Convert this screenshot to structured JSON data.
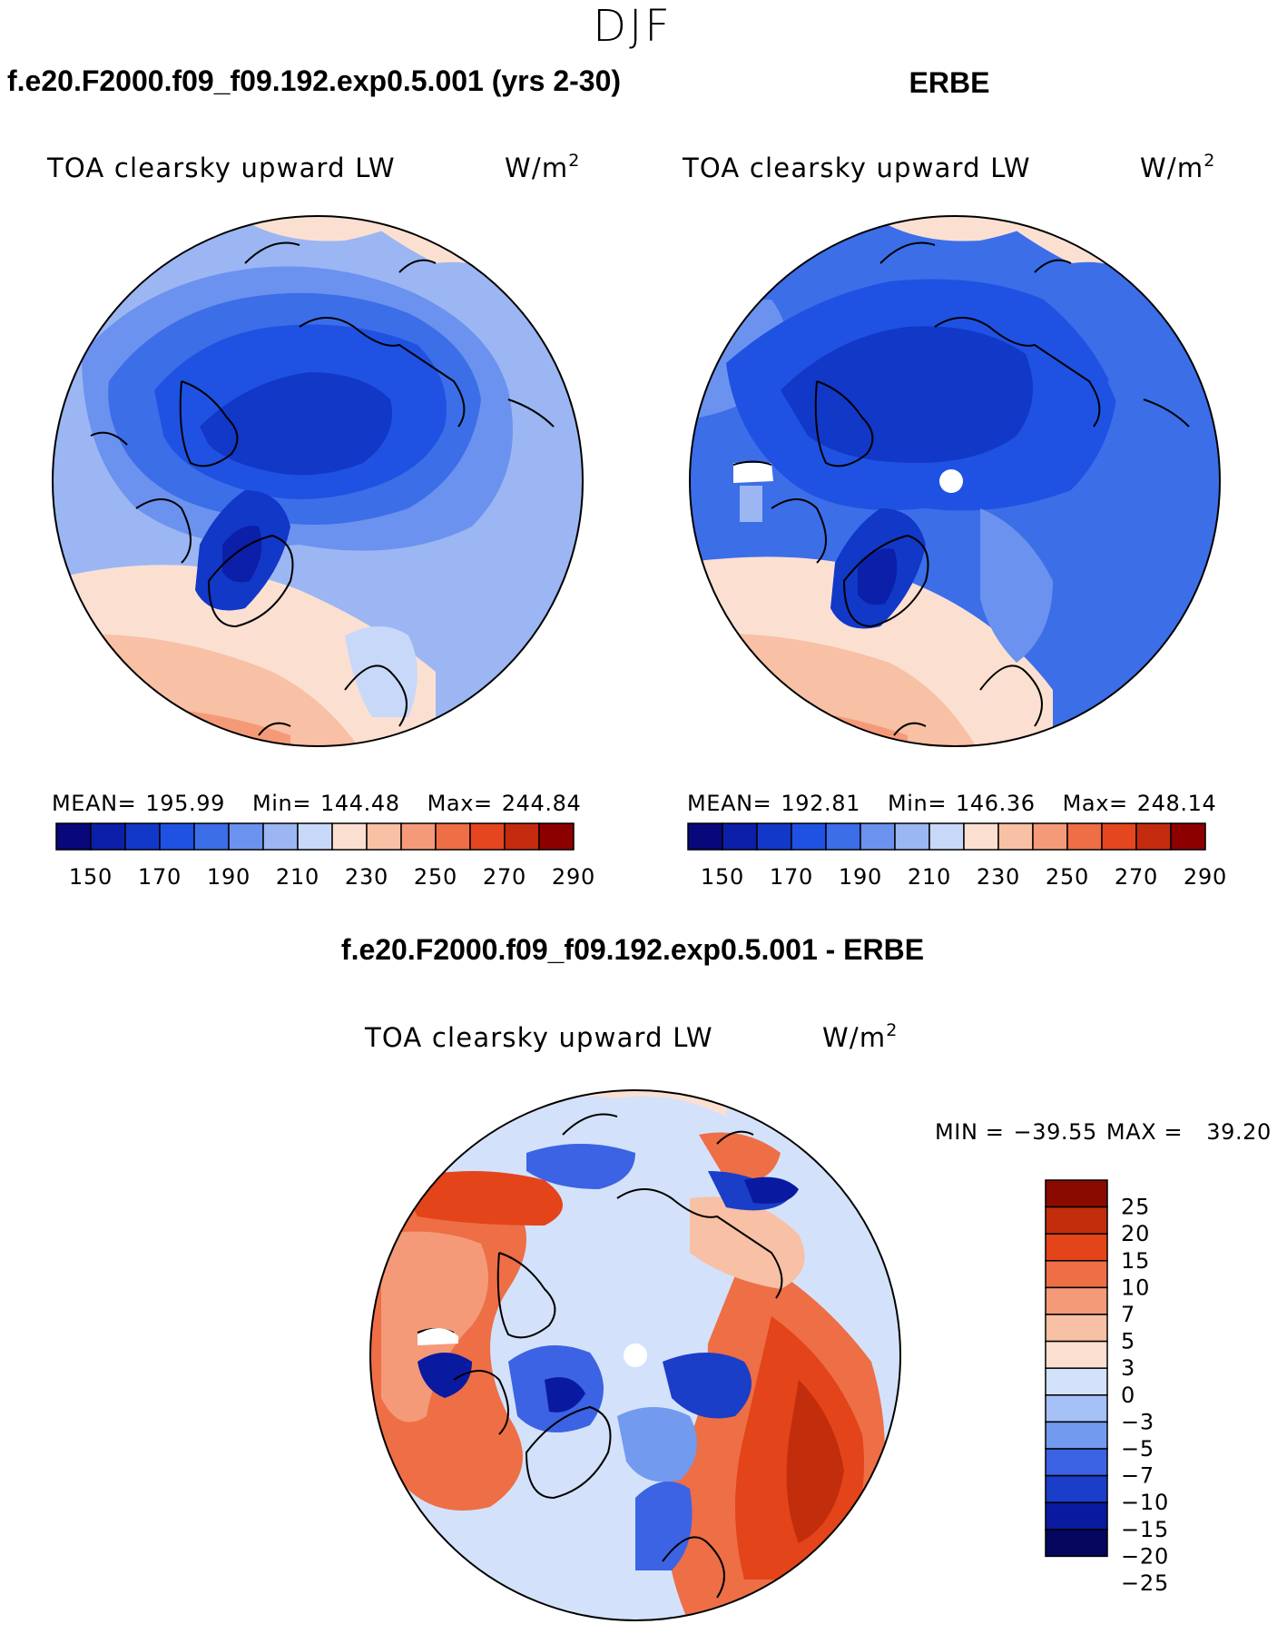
{
  "season": "DJF",
  "colors": {
    "model_palette": [
      "#08087a",
      "#0b1fa8",
      "#1238c8",
      "#1f52e2",
      "#3c6ee8",
      "#6b92ee",
      "#9bb6f3",
      "#c8d8f8",
      "#fbe0d2",
      "#f8c0a4",
      "#f49a78",
      "#ee6e46",
      "#e4461f",
      "#c42b0e",
      "#8c0000"
    ],
    "diff_palette": [
      "#05065e",
      "#0a1aa0",
      "#1a3ec8",
      "#3b63e3",
      "#729aef",
      "#a5c0f6",
      "#d3e2fa",
      "#fbe0d2",
      "#f8c0a4",
      "#f49a78",
      "#ee6e46",
      "#e3441a",
      "#c22d0c",
      "#8b0a00"
    ],
    "land_outline": "#000000",
    "missing_fill": "#ffffff"
  },
  "panels": [
    {
      "title": "f.e20.F2000.f09_f09.192.exp0.5.001 (yrs 2-30)",
      "variable": "TOA clearsky upward LW",
      "units": "W/m",
      "units_exp": "2",
      "mean_label": "MEAN=",
      "mean": "195.99",
      "min_label": "Min=",
      "min": "144.48",
      "max_label": "Max=",
      "max": "244.84",
      "colorbar_ticks": [
        "150",
        "170",
        "190",
        "210",
        "230",
        "250",
        "270",
        "290"
      ]
    },
    {
      "title": "ERBE",
      "variable": "TOA clearsky upward LW",
      "units": "W/m",
      "units_exp": "2",
      "mean_label": "MEAN=",
      "mean": "192.81",
      "min_label": "Min=",
      "min": "146.36",
      "max_label": "Max=",
      "max": "248.14",
      "colorbar_ticks": [
        "150",
        "170",
        "190",
        "210",
        "230",
        "250",
        "270",
        "290"
      ]
    }
  ],
  "difference": {
    "title": "f.e20.F2000.f09_f09.192.exp0.5.001 - ERBE",
    "variable": "TOA clearsky upward LW",
    "units": "W/m",
    "units_exp": "2",
    "min_label": "MIN =",
    "min": "−39.55",
    "max_label": "MAX =",
    "max": "39.20",
    "colorbar_ticks": [
      "25",
      "20",
      "15",
      "10",
      "7",
      "5",
      "3",
      "0",
      "−3",
      "−5",
      "−7",
      "−10",
      "−15",
      "−20",
      "−25"
    ]
  }
}
